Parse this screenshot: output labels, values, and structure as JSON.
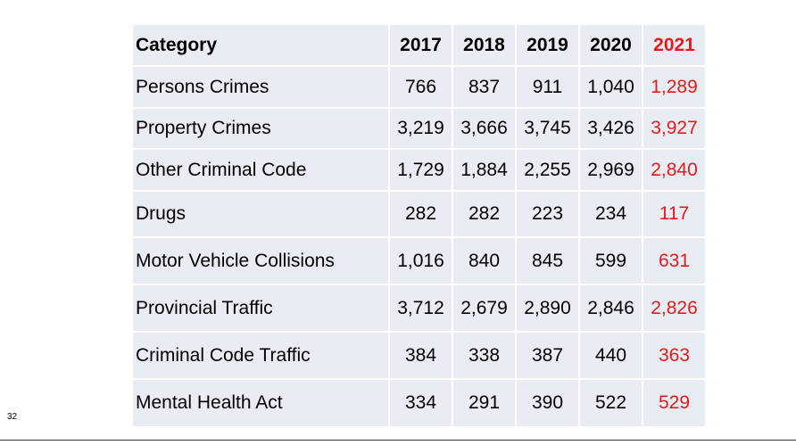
{
  "table": {
    "header": {
      "category": "Category",
      "years": [
        "2017",
        "2018",
        "2019",
        "2020",
        "2021"
      ]
    },
    "highlight_color": "#e51b1b",
    "row_background": "#e9ecf3",
    "rows": [
      {
        "category": "Persons Crimes",
        "values": [
          "766",
          "837",
          "911",
          "1,040",
          "1,289"
        ]
      },
      {
        "category": "Property Crimes",
        "values": [
          "3,219",
          "3,666",
          "3,745",
          "3,426",
          "3,927"
        ]
      },
      {
        "category": "Other Criminal Code",
        "values": [
          "1,729",
          "1,884",
          "2,255",
          "2,969",
          "2,840"
        ]
      },
      {
        "category": "Drugs",
        "values": [
          "282",
          "282",
          "223",
          "234",
          "117"
        ]
      },
      {
        "category": "Motor Vehicle Collisions",
        "values": [
          "1,016",
          "840",
          "845",
          "599",
          "631"
        ]
      },
      {
        "category": "Provincial Traffic",
        "values": [
          "3,712",
          "2,679",
          "2,890",
          "2,846",
          "2,826"
        ]
      },
      {
        "category": "Criminal Code Traffic",
        "values": [
          "384",
          "338",
          "387",
          "440",
          "363"
        ]
      },
      {
        "category": "Mental Health Act",
        "values": [
          "334",
          "291",
          "390",
          "522",
          "529"
        ]
      }
    ]
  },
  "page_number": "32"
}
